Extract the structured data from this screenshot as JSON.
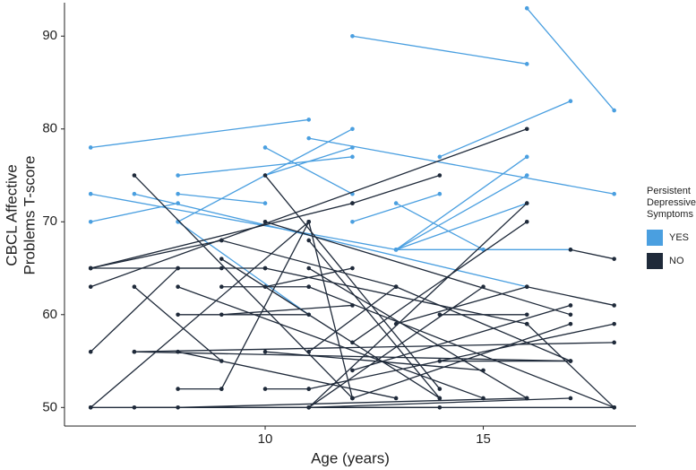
{
  "chart_data": {
    "type": "spaghetti",
    "xlabel": "Age (years)",
    "ylabel": [
      "CBCL Affective",
      "Problems T-score"
    ],
    "xlim": [
      5.4,
      18.5
    ],
    "ylim": [
      48,
      93.6
    ],
    "xticks": [
      10,
      15
    ],
    "yticks": [
      50,
      60,
      70,
      80,
      90
    ],
    "grid": false,
    "legend_title": [
      "Persistent",
      "Depressive",
      "Symptoms"
    ],
    "legend_position": "right",
    "groups": [
      {
        "name": "YES",
        "color": "#4a9fe0",
        "subjects": [
          {
            "x": [
              12,
              16
            ],
            "y": [
              90,
              87
            ]
          },
          {
            "x": [
              16,
              18
            ],
            "y": [
              93,
              82
            ]
          },
          {
            "x": [
              6,
              11
            ],
            "y": [
              78,
              81
            ]
          },
          {
            "x": [
              6,
              13
            ],
            "y": [
              73,
              67
            ]
          },
          {
            "x": [
              6,
              8
            ],
            "y": [
              70,
              72
            ]
          },
          {
            "x": [
              7,
              16
            ],
            "y": [
              73,
              63
            ]
          },
          {
            "x": [
              8,
              12
            ],
            "y": [
              75,
              77
            ]
          },
          {
            "x": [
              8,
              10
            ],
            "y": [
              73,
              72
            ]
          },
          {
            "x": [
              8,
              12
            ],
            "y": [
              70,
              80
            ]
          },
          {
            "x": [
              8,
              11
            ],
            "y": [
              70,
              60
            ]
          },
          {
            "x": [
              10,
              12
            ],
            "y": [
              78,
              73
            ]
          },
          {
            "x": [
              10,
              12
            ],
            "y": [
              75,
              78
            ]
          },
          {
            "x": [
              11,
              18
            ],
            "y": [
              79,
              73
            ]
          },
          {
            "x": [
              12,
              14
            ],
            "y": [
              70,
              73
            ]
          },
          {
            "x": [
              13,
              15
            ],
            "y": [
              72,
              67
            ]
          },
          {
            "x": [
              13,
              16
            ],
            "y": [
              67,
              77
            ]
          },
          {
            "x": [
              13,
              16
            ],
            "y": [
              67,
              72
            ]
          },
          {
            "x": [
              13,
              17
            ],
            "y": [
              67,
              67
            ]
          },
          {
            "x": [
              14,
              17
            ],
            "y": [
              77,
              83
            ]
          },
          {
            "x": [
              13,
              16
            ],
            "y": [
              67,
              75
            ]
          }
        ]
      },
      {
        "name": "NO",
        "color": "#1f2a3a",
        "subjects": [
          {
            "x": [
              6,
              12
            ],
            "y": [
              65,
              72
            ]
          },
          {
            "x": [
              6,
              9
            ],
            "y": [
              65,
              68
            ]
          },
          {
            "x": [
              6,
              10
            ],
            "y": [
              65,
              65
            ]
          },
          {
            "x": [
              6,
              16
            ],
            "y": [
              63,
              80
            ]
          },
          {
            "x": [
              6,
              8
            ],
            "y": [
              56,
              65
            ]
          },
          {
            "x": [
              6,
              14
            ],
            "y": [
              50,
              50
            ]
          },
          {
            "x": [
              6,
              11
            ],
            "y": [
              50,
              70
            ]
          },
          {
            "x": [
              7,
              12
            ],
            "y": [
              75,
              51
            ]
          },
          {
            "x": [
              7,
              9
            ],
            "y": [
              63,
              55
            ]
          },
          {
            "x": [
              7,
              18
            ],
            "y": [
              56,
              57
            ]
          },
          {
            "x": [
              7,
              17
            ],
            "y": [
              56,
              55
            ]
          },
          {
            "x": [
              7,
              18
            ],
            "y": [
              50,
              50
            ]
          },
          {
            "x": [
              8,
              9
            ],
            "y": [
              65,
              65
            ]
          },
          {
            "x": [
              8,
              15
            ],
            "y": [
              63,
              51
            ]
          },
          {
            "x": [
              8,
              11
            ],
            "y": [
              60,
              60
            ]
          },
          {
            "x": [
              8,
              13
            ],
            "y": [
              56,
              51
            ]
          },
          {
            "x": [
              8,
              9
            ],
            "y": [
              52,
              52
            ]
          },
          {
            "x": [
              8,
              16
            ],
            "y": [
              50,
              51
            ]
          },
          {
            "x": [
              9,
              13
            ],
            "y": [
              68,
              63
            ]
          },
          {
            "x": [
              9,
              14
            ],
            "y": [
              66,
              51
            ]
          },
          {
            "x": [
              9,
              11
            ],
            "y": [
              63,
              63
            ]
          },
          {
            "x": [
              9,
              12
            ],
            "y": [
              60,
              61
            ]
          },
          {
            "x": [
              9,
              11
            ],
            "y": [
              52,
              70
            ]
          },
          {
            "x": [
              10,
              14
            ],
            "y": [
              75,
              52
            ]
          },
          {
            "x": [
              10,
              17
            ],
            "y": [
              70,
              60
            ]
          },
          {
            "x": [
              10,
              16
            ],
            "y": [
              65,
              59
            ]
          },
          {
            "x": [
              10,
              12
            ],
            "y": [
              63,
              65
            ]
          },
          {
            "x": [
              10,
              15
            ],
            "y": [
              56,
              54
            ]
          },
          {
            "x": [
              10,
              11
            ],
            "y": [
              52,
              52
            ]
          },
          {
            "x": [
              11,
              12
            ],
            "y": [
              70,
              51
            ]
          },
          {
            "x": [
              11,
              14
            ],
            "y": [
              68,
              51
            ]
          },
          {
            "x": [
              11,
              16
            ],
            "y": [
              65,
              51
            ]
          },
          {
            "x": [
              11,
              18
            ],
            "y": [
              63,
              50
            ]
          },
          {
            "x": [
              11,
              13
            ],
            "y": [
              56,
              63
            ]
          },
          {
            "x": [
              11,
              18
            ],
            "y": [
              52,
              59
            ]
          },
          {
            "x": [
              11,
              16
            ],
            "y": [
              50,
              72
            ]
          },
          {
            "x": [
              11,
              15
            ],
            "y": [
              50,
              63
            ]
          },
          {
            "x": [
              11,
              17
            ],
            "y": [
              50,
              51
            ]
          },
          {
            "x": [
              12,
              14
            ],
            "y": [
              72,
              75
            ]
          },
          {
            "x": [
              12,
              16
            ],
            "y": [
              57,
              70
            ]
          },
          {
            "x": [
              12,
              17
            ],
            "y": [
              54,
              61
            ]
          },
          {
            "x": [
              12,
              17
            ],
            "y": [
              51,
              59
            ]
          },
          {
            "x": [
              13,
              17
            ],
            "y": [
              63,
              55
            ]
          },
          {
            "x": [
              13,
              16
            ],
            "y": [
              59,
              63
            ]
          },
          {
            "x": [
              14,
              16
            ],
            "y": [
              60,
              60
            ]
          },
          {
            "x": [
              14,
              17
            ],
            "y": [
              55,
              55
            ]
          },
          {
            "x": [
              17,
              18
            ],
            "y": [
              67,
              66
            ]
          },
          {
            "x": [
              16,
              18
            ],
            "y": [
              63,
              61
            ]
          },
          {
            "x": [
              16,
              18
            ],
            "y": [
              59,
              50
            ]
          }
        ]
      }
    ]
  }
}
